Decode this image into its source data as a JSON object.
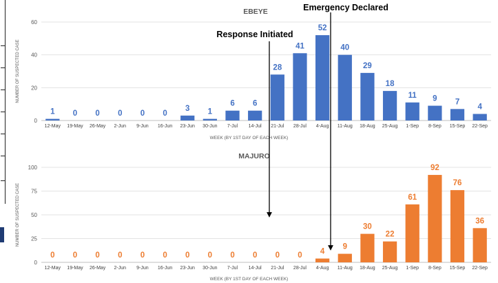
{
  "annotations": {
    "response": "Response Initiated",
    "emergency": "Emergency Declared"
  },
  "chart_data": [
    {
      "type": "bar",
      "title": "EBEYE",
      "xlabel": "WEEK (BY 1ST DAY OF EACH WEEK)",
      "ylabel": "NUMBER OF SUSPECTED CASE",
      "ylim": [
        0,
        60
      ],
      "yticks": [
        0,
        20,
        40,
        60
      ],
      "grid": true,
      "color": "#4472c4",
      "categories": [
        "12-May",
        "19-May",
        "26-May",
        "2-Jun",
        "9-Jun",
        "16-Jun",
        "23-Jun",
        "30-Jun",
        "7-Jul",
        "14-Jul",
        "21-Jul",
        "28-Jul",
        "4-Aug",
        "11-Aug",
        "18-Aug",
        "25-Aug",
        "1-Sep",
        "8-Sep",
        "15-Sep",
        "22-Sep"
      ],
      "values": [
        1,
        0,
        0,
        0,
        0,
        0,
        3,
        1,
        6,
        6,
        28,
        41,
        52,
        40,
        29,
        18,
        11,
        9,
        7,
        4
      ]
    },
    {
      "type": "bar",
      "title": "MAJURO",
      "xlabel": "WEEK (BY 1ST DAY OF EACH WEEK)",
      "ylabel": "NUMBER OF SUSPECTED CASE",
      "ylim": [
        0,
        100
      ],
      "yticks": [
        0,
        25,
        50,
        75,
        100
      ],
      "grid": true,
      "color": "#ed7d31",
      "categories": [
        "12-May",
        "19-May",
        "26-May",
        "2-Jun",
        "9-Jun",
        "16-Jun",
        "23-Jun",
        "30-Jun",
        "7-Jul",
        "14-Jul",
        "21-Jul",
        "28-Jul",
        "4-Aug",
        "11-Aug",
        "18-Aug",
        "25-Aug",
        "1-Sep",
        "8-Sep",
        "15-Sep",
        "22-Sep"
      ],
      "values": [
        0,
        0,
        0,
        0,
        0,
        0,
        0,
        0,
        0,
        0,
        0,
        0,
        4,
        9,
        30,
        22,
        61,
        92,
        76,
        36
      ]
    }
  ]
}
